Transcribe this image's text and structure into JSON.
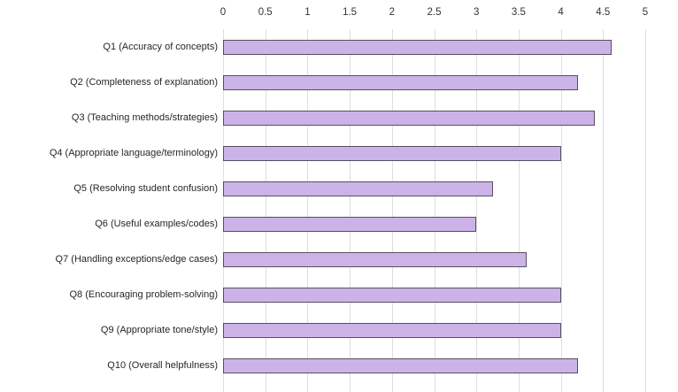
{
  "chart_data": {
    "type": "bar",
    "orientation": "horizontal",
    "title": "",
    "xlabel": "",
    "ylabel": "",
    "categories": [
      "Q1 (Accuracy of concepts)",
      "Q2 (Completeness of explanation)",
      "Q3 (Teaching methods/strategies)",
      "Q4 (Appropriate language/terminology)",
      "Q5 (Resolving student confusion)",
      "Q6 (Useful examples/codes)",
      "Q7 (Handling exceptions/edge cases)",
      "Q8 (Encouraging problem-solving)",
      "Q9 (Appropriate tone/style)",
      "Q10 (Overall helpfulness)"
    ],
    "values": [
      4.6,
      4.2,
      4.4,
      4.0,
      3.2,
      3.0,
      3.6,
      4.0,
      4.0,
      4.2
    ],
    "xlim": [
      0,
      5
    ],
    "xticks": [
      0,
      0.5,
      1,
      1.5,
      2,
      2.5,
      3,
      3.5,
      4,
      4.5,
      5
    ],
    "xtick_labels": [
      "0",
      "0.5",
      "1",
      "1.5",
      "2",
      "2.5",
      "3",
      "3.5",
      "4",
      "4.5",
      "5"
    ],
    "axis_position": "top",
    "grid": true,
    "legend": false,
    "colors": {
      "bar_fill": "#cbb3e8",
      "bar_border": "#57505e",
      "gridline": "#dedede",
      "axis_text": "#333333",
      "background": "#ffffff"
    }
  }
}
